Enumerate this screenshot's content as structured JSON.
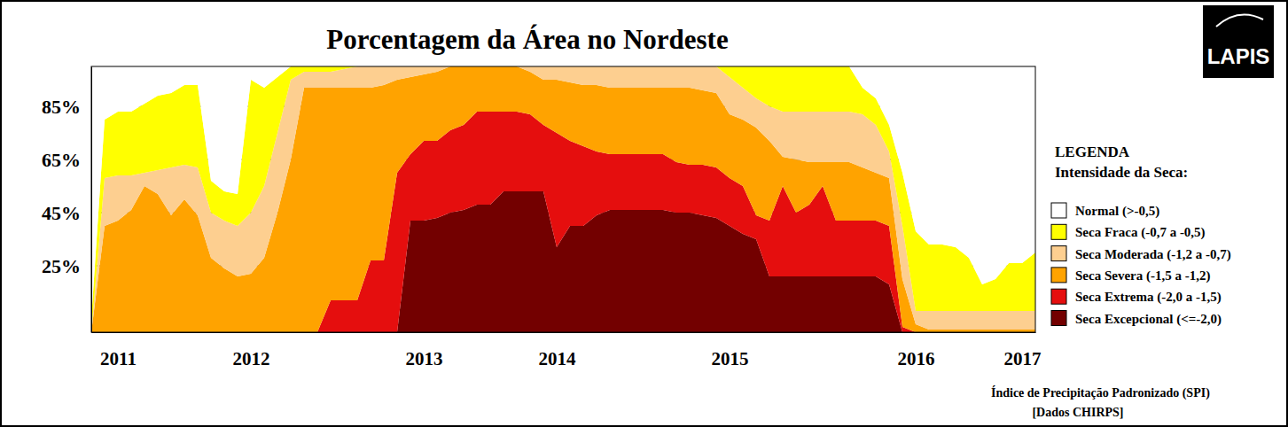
{
  "chart_data": {
    "type": "area",
    "title": "Porcentagem da Área no Nordeste",
    "stacked": true,
    "grid": true,
    "legend": "right",
    "categories": [
      null,
      null,
      "2011",
      null,
      null,
      null,
      null,
      null,
      null,
      null,
      null,
      null,
      "2012",
      null,
      null,
      null,
      null,
      null,
      null,
      null,
      null,
      null,
      null,
      null,
      null,
      "2013",
      null,
      null,
      null,
      null,
      null,
      null,
      null,
      null,
      null,
      "2014",
      null,
      null,
      null,
      null,
      null,
      null,
      null,
      null,
      null,
      null,
      null,
      null,
      "2015",
      null,
      null,
      null,
      null,
      null,
      null,
      null,
      null,
      null,
      null,
      null,
      null,
      null,
      "2016",
      null,
      null,
      null,
      null,
      null,
      null,
      null,
      "2017",
      null
    ],
    "ylim": [
      0,
      100
    ],
    "yticks": [
      {
        "value": 25,
        "label": "25%"
      },
      {
        "value": 45,
        "label": "45%"
      },
      {
        "value": 65,
        "label": "65%"
      },
      {
        "value": 85,
        "label": "85%"
      }
    ],
    "series": [
      {
        "name": "Normal (>-0,5)",
        "color": "#ffffff",
        "values": [
          95,
          20,
          17,
          17,
          14,
          11,
          10,
          7,
          7,
          43,
          47,
          48,
          5,
          8,
          4,
          0,
          0,
          0,
          0,
          0,
          0,
          0,
          0,
          0,
          0,
          0,
          0,
          0,
          0,
          0,
          0,
          0,
          0,
          0,
          0,
          0,
          0,
          0,
          0,
          0,
          0,
          0,
          0,
          0,
          0,
          0,
          0,
          0,
          0,
          0,
          0,
          0,
          0,
          0,
          0,
          0,
          0,
          0,
          8,
          12,
          22,
          40,
          62,
          67,
          67,
          68,
          72,
          82,
          80,
          74,
          74,
          70
        ]
      },
      {
        "name": "Seca Fraca (-0,7 a -0,5)",
        "color": "#ffff00",
        "values": [
          5,
          22,
          24,
          24,
          26,
          28,
          28,
          30,
          31,
          12,
          11,
          12,
          50,
          37,
          21,
          5,
          2,
          2,
          2,
          1,
          0,
          0,
          0,
          0,
          0,
          0,
          0,
          0,
          0,
          0,
          0,
          0,
          0,
          0,
          0,
          0,
          0,
          0,
          0,
          0,
          0,
          0,
          0,
          0,
          0,
          0,
          0,
          0,
          4,
          8,
          12,
          15,
          17,
          17,
          17,
          17,
          17,
          17,
          10,
          10,
          10,
          20,
          30,
          25,
          25,
          24,
          20,
          10,
          12,
          18,
          18,
          22
        ]
      },
      {
        "name": "Seca Moderada (-1,2 a -0,7)",
        "color": "#fdcf90",
        "values": [
          0,
          18,
          17,
          13,
          5,
          9,
          18,
          13,
          18,
          17,
          18,
          19,
          23,
          27,
          30,
          30,
          6,
          6,
          6,
          7,
          8,
          8,
          7,
          5,
          4,
          3,
          2,
          0,
          0,
          0,
          0,
          0,
          0,
          2,
          5,
          5,
          6,
          7,
          7,
          8,
          8,
          8,
          8,
          8,
          8,
          8,
          9,
          10,
          14,
          12,
          11,
          13,
          17,
          18,
          19,
          19,
          19,
          19,
          20,
          18,
          10,
          20,
          5,
          7,
          7,
          7,
          7,
          7,
          7,
          7,
          7,
          7
        ]
      },
      {
        "name": "Seca Severa (-1,5 a -1,2)",
        "color": "#ffa300",
        "values": [
          0,
          40,
          42,
          46,
          55,
          52,
          44,
          50,
          44,
          28,
          24,
          21,
          22,
          28,
          45,
          65,
          92,
          92,
          80,
          80,
          80,
          65,
          66,
          35,
          29,
          25,
          26,
          24,
          22,
          17,
          17,
          17,
          17,
          16,
          17,
          20,
          22,
          23,
          25,
          25,
          25,
          25,
          25,
          25,
          28,
          29,
          28,
          28,
          24,
          25,
          33,
          30,
          11,
          20,
          16,
          9,
          22,
          22,
          20,
          18,
          18,
          18,
          3,
          1,
          1,
          1,
          1,
          1,
          1,
          1,
          1,
          1
        ]
      },
      {
        "name": "Seca Extrema (-2,0 a -1,5)",
        "color": "#e50e0e",
        "values": [
          0,
          0,
          0,
          0,
          0,
          0,
          0,
          0,
          0,
          0,
          0,
          0,
          0,
          0,
          0,
          0,
          0,
          0,
          12,
          12,
          12,
          27,
          27,
          60,
          25,
          30,
          29,
          31,
          32,
          35,
          35,
          30,
          30,
          29,
          25,
          43,
          32,
          30,
          24,
          21,
          21,
          21,
          21,
          21,
          19,
          18,
          19,
          19,
          18,
          18,
          9,
          21,
          34,
          24,
          27,
          34,
          21,
          21,
          21,
          21,
          22,
          2,
          0,
          0,
          0,
          0,
          0,
          0,
          0,
          0,
          0,
          0
        ]
      },
      {
        "name": "Seca Excepcional (<=-2,0)",
        "color": "#730000",
        "values": [
          0,
          0,
          0,
          0,
          0,
          0,
          0,
          0,
          0,
          0,
          0,
          0,
          0,
          0,
          0,
          0,
          0,
          0,
          0,
          0,
          0,
          0,
          0,
          0,
          42,
          42,
          43,
          45,
          46,
          48,
          48,
          53,
          53,
          53,
          53,
          32,
          40,
          40,
          44,
          46,
          46,
          46,
          46,
          46,
          45,
          45,
          44,
          43,
          40,
          37,
          35,
          21,
          21,
          21,
          21,
          21,
          21,
          21,
          21,
          21,
          18,
          0,
          0,
          0,
          0,
          0,
          0,
          0,
          0,
          0,
          0,
          0
        ]
      }
    ],
    "annotations": [
      "LEGENDA",
      "Intensidade da Seca:",
      "Índice de Precipitação Padronizado (SPI)",
      "[Dados CHIRPS]",
      "LAPIS"
    ]
  }
}
